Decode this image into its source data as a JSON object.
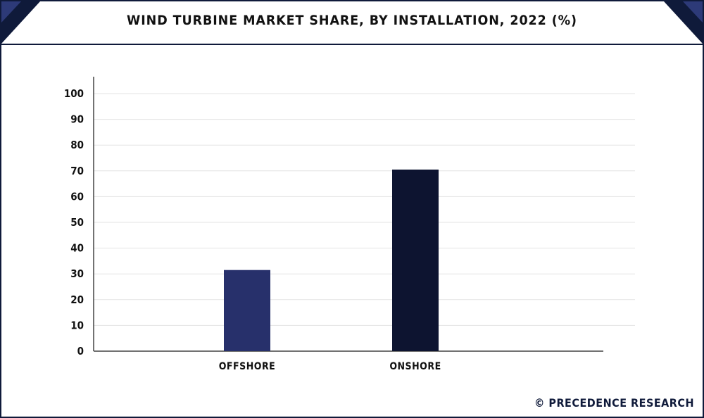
{
  "title": "WIND TURBINE MARKET SHARE, BY INSTALLATION, 2022 (%)",
  "brand": "© PRECEDENCE RESEARCH",
  "colors": {
    "frame": "#0f1a3a",
    "offshore": "#27306b",
    "onshore": "#0d1430",
    "grid": "#e3e3e3",
    "axis": "#444444"
  },
  "chart_data": {
    "type": "bar",
    "title": "WIND TURBINE MARKET SHARE, BY INSTALLATION, 2022 (%)",
    "categories": [
      "OFFSHORE",
      "ONSHORE"
    ],
    "values": [
      31.5,
      70.5
    ],
    "ylim": [
      0,
      100
    ],
    "yticks": [
      0,
      10,
      20,
      30,
      40,
      50,
      60,
      70,
      80,
      90,
      100
    ],
    "xlabel": "",
    "ylabel": "",
    "grid": true,
    "legend": "none"
  }
}
